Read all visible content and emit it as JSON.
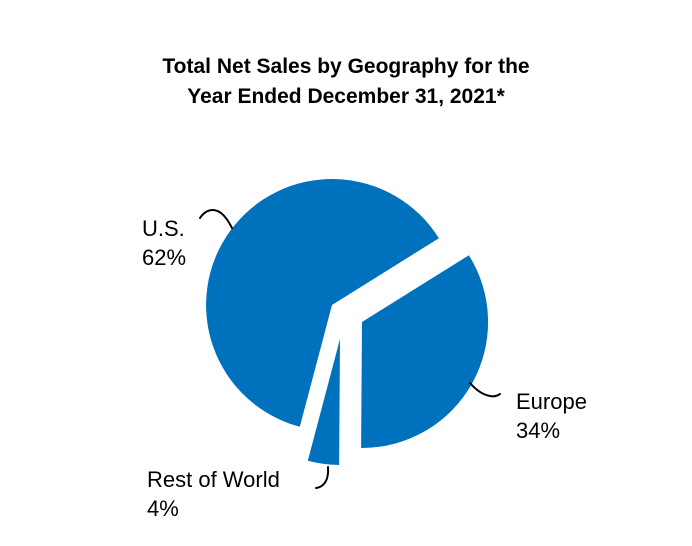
{
  "chart_data": {
    "type": "pie",
    "title": "Total Net Sales by Geography for the Year Ended December 31, 2021*",
    "title_lines": [
      "Total Net Sales by Geography for the",
      "Year Ended December 31, 2021*"
    ],
    "unit": "%",
    "slices": [
      {
        "label": "U.S.",
        "value": 62
      },
      {
        "label": "Europe",
        "value": 34
      },
      {
        "label": "Rest of World",
        "value": 4
      }
    ],
    "colors": {
      "slice_fill": "#0071BC",
      "text": "#000000",
      "leader_line": "#000000",
      "background": "#FFFFFF"
    },
    "legend_position": "external-callout-labels",
    "layout": "Europe and Rest of World slices exploded from center; curved leader lines connect labels to slices; no axes or gridlines"
  }
}
